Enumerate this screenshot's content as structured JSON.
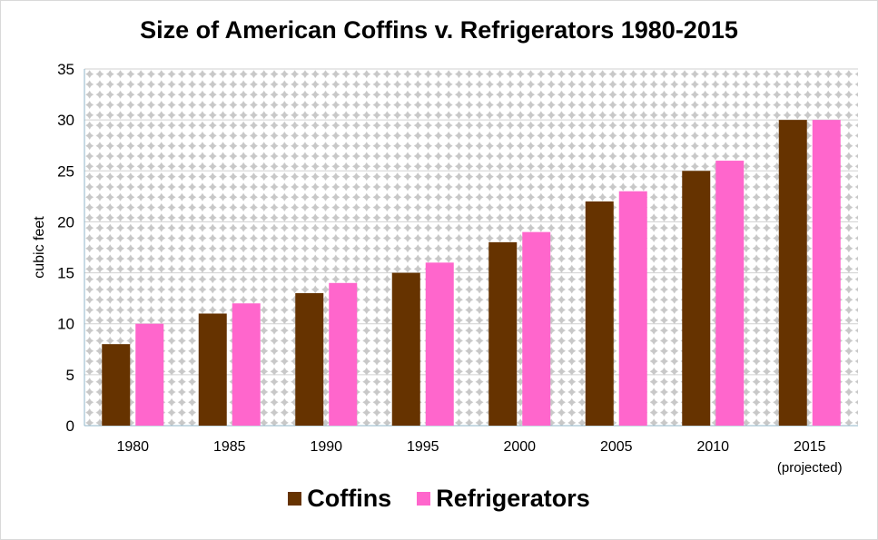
{
  "chart_data": {
    "type": "bar",
    "title": "Size of American Coffins v. Refrigerators 1980-2015",
    "ylabel": "cubic feet",
    "xlabel": "",
    "ylim": [
      0,
      35
    ],
    "yticks": [
      0,
      5,
      10,
      15,
      20,
      25,
      30,
      35
    ],
    "categories": [
      "1980",
      "1985",
      "1990",
      "1995",
      "2000",
      "2005",
      "2010",
      "2015"
    ],
    "category_notes": [
      "",
      "",
      "",
      "",
      "",
      "",
      "",
      "(projected)"
    ],
    "series": [
      {
        "name": "Coffins",
        "color": "#663300",
        "values": [
          8,
          11,
          13,
          15,
          18,
          22,
          25,
          30
        ]
      },
      {
        "name": "Refrigerators",
        "color": "#ff66cc",
        "values": [
          10,
          12,
          14,
          16,
          19,
          23,
          26,
          30
        ]
      }
    ],
    "grid": true,
    "background": "grey diamond pattern",
    "legend_position": "bottom"
  }
}
